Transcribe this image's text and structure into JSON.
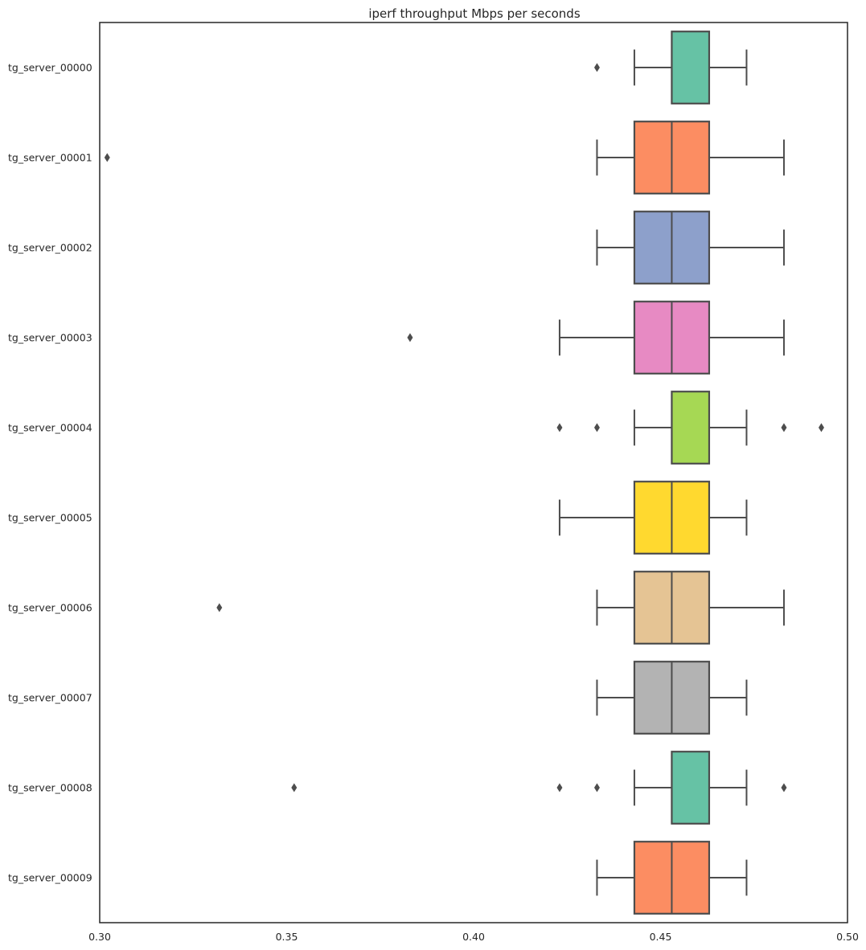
{
  "chart_data": {
    "type": "boxplot",
    "orientation": "horizontal",
    "title": "iperf throughput Mbps per seconds",
    "xlabel": "",
    "ylabel": "",
    "xlim": [
      0.3,
      0.5
    ],
    "xticks": [
      0.3,
      0.35,
      0.4,
      0.45,
      0.5
    ],
    "xtick_labels": [
      "0.30",
      "0.35",
      "0.40",
      "0.45",
      "0.50"
    ],
    "grid": false,
    "categories": [
      "tg_server_00000",
      "tg_server_00001",
      "tg_server_00002",
      "tg_server_00003",
      "tg_server_00004",
      "tg_server_00005",
      "tg_server_00006",
      "tg_server_00007",
      "tg_server_00008",
      "tg_server_00009"
    ],
    "colors": [
      "#66c2a5",
      "#fc8d62",
      "#8da0cb",
      "#e78ac3",
      "#a6d854",
      "#ffd92f",
      "#e5c494",
      "#b3b3b3",
      "#66c2a5",
      "#fc8d62"
    ],
    "boxes": [
      {
        "whisker_low": 0.443,
        "q1": 0.453,
        "median": 0.453,
        "q3": 0.463,
        "whisker_high": 0.473,
        "outliers": [
          0.433
        ]
      },
      {
        "whisker_low": 0.433,
        "q1": 0.443,
        "median": 0.453,
        "q3": 0.463,
        "whisker_high": 0.483,
        "outliers": [
          0.302
        ]
      },
      {
        "whisker_low": 0.433,
        "q1": 0.443,
        "median": 0.453,
        "q3": 0.463,
        "whisker_high": 0.483,
        "outliers": []
      },
      {
        "whisker_low": 0.423,
        "q1": 0.443,
        "median": 0.453,
        "q3": 0.463,
        "whisker_high": 0.483,
        "outliers": [
          0.383
        ]
      },
      {
        "whisker_low": 0.443,
        "q1": 0.453,
        "median": 0.453,
        "q3": 0.463,
        "whisker_high": 0.473,
        "outliers": [
          0.423,
          0.433,
          0.483,
          0.493
        ]
      },
      {
        "whisker_low": 0.423,
        "q1": 0.443,
        "median": 0.453,
        "q3": 0.463,
        "whisker_high": 0.473,
        "outliers": []
      },
      {
        "whisker_low": 0.433,
        "q1": 0.443,
        "median": 0.453,
        "q3": 0.463,
        "whisker_high": 0.483,
        "outliers": [
          0.332
        ]
      },
      {
        "whisker_low": 0.433,
        "q1": 0.443,
        "median": 0.453,
        "q3": 0.463,
        "whisker_high": 0.473,
        "outliers": []
      },
      {
        "whisker_low": 0.443,
        "q1": 0.453,
        "median": 0.453,
        "q3": 0.463,
        "whisker_high": 0.473,
        "outliers": [
          0.352,
          0.423,
          0.433,
          0.483
        ]
      },
      {
        "whisker_low": 0.433,
        "q1": 0.443,
        "median": 0.453,
        "q3": 0.463,
        "whisker_high": 0.473,
        "outliers": []
      }
    ]
  }
}
